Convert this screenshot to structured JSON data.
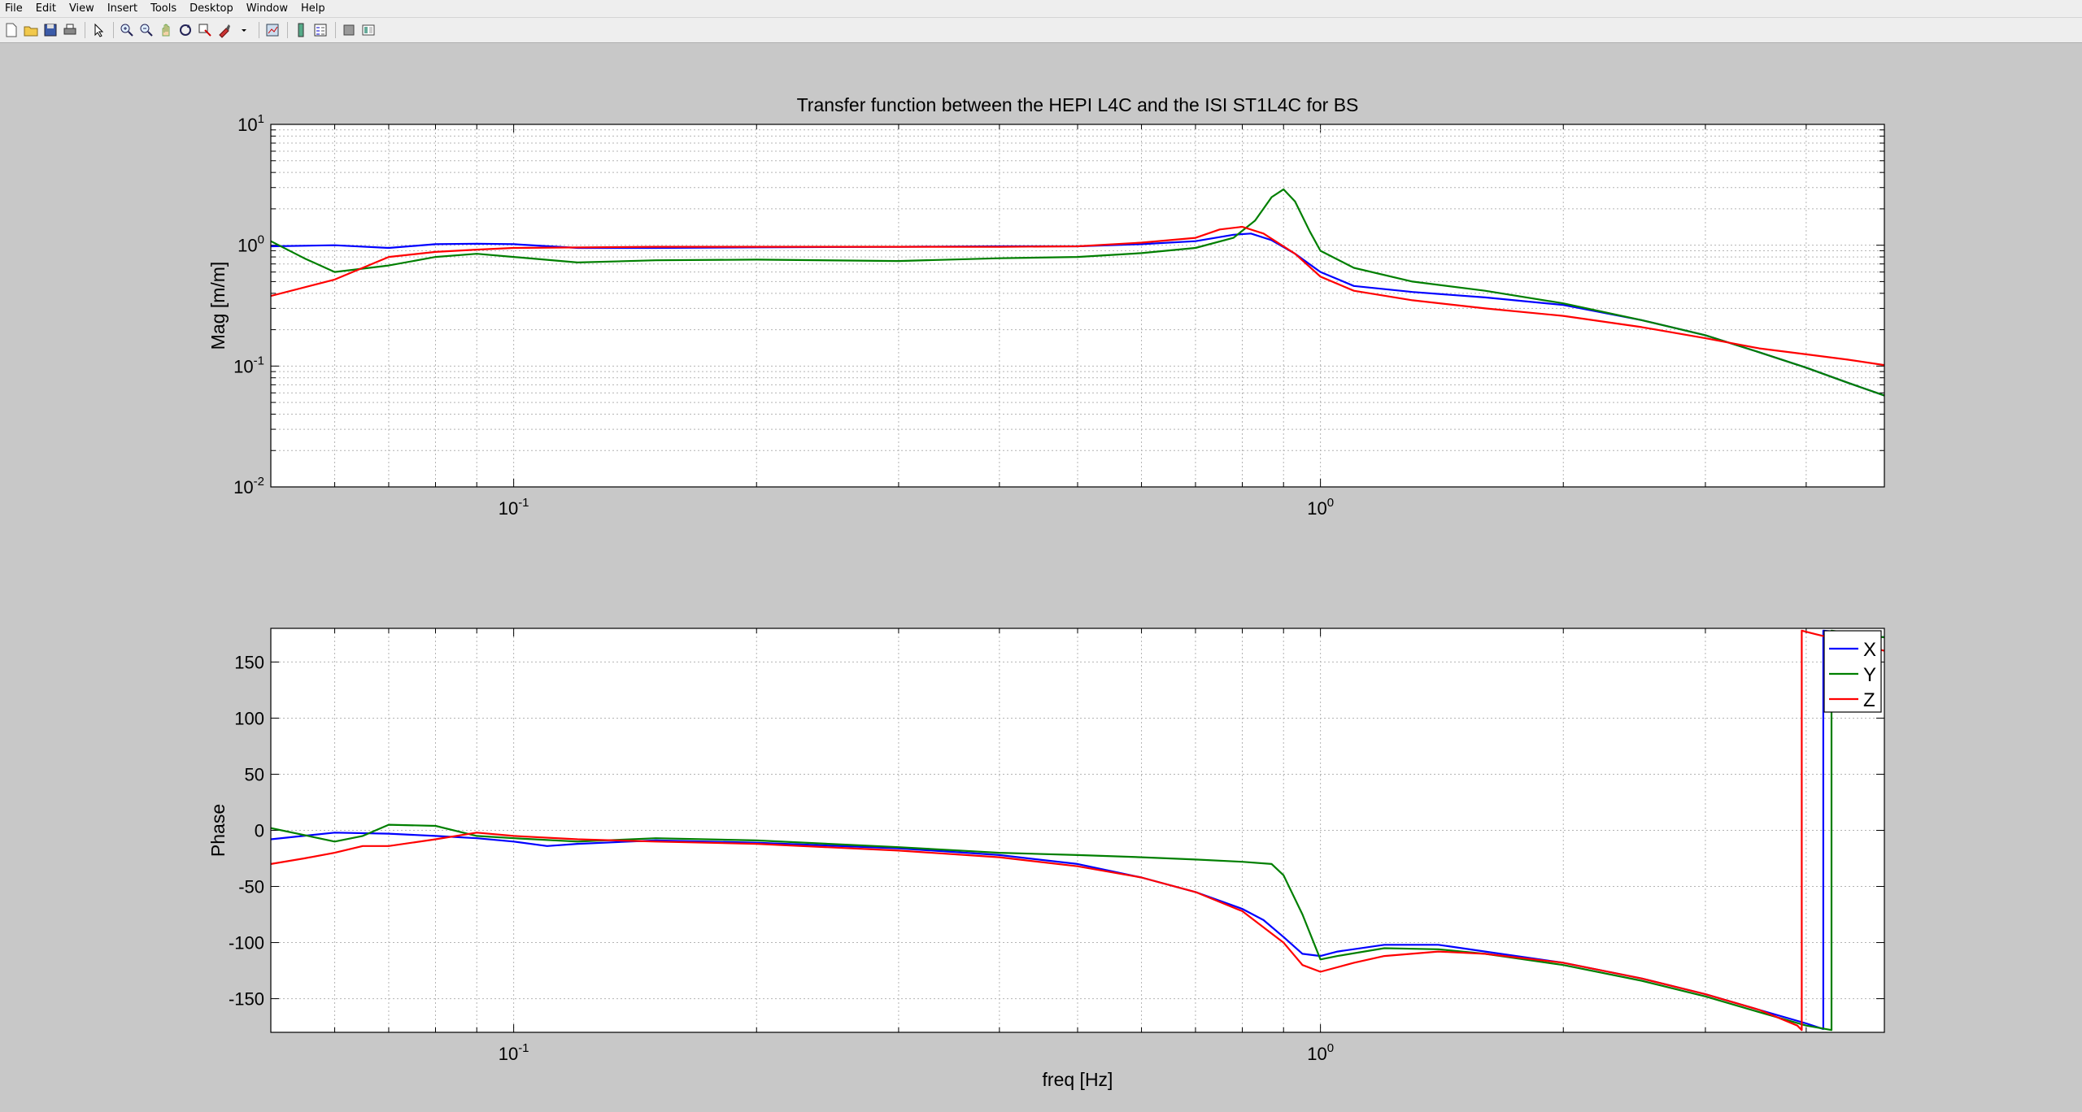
{
  "menu": [
    "File",
    "Edit",
    "View",
    "Insert",
    "Tools",
    "Desktop",
    "Window",
    "Help"
  ],
  "toolbar": [
    {
      "name": "new-figure-icon",
      "glyph": "new"
    },
    {
      "name": "open-file-icon",
      "glyph": "open"
    },
    {
      "name": "save-icon",
      "glyph": "save"
    },
    {
      "name": "print-icon",
      "glyph": "print"
    },
    {
      "sep": true
    },
    {
      "name": "edit-plot-icon",
      "glyph": "arrow"
    },
    {
      "sep": true
    },
    {
      "name": "zoom-in-icon",
      "glyph": "zoomin"
    },
    {
      "name": "zoom-out-icon",
      "glyph": "zoomout"
    },
    {
      "name": "pan-icon",
      "glyph": "pan"
    },
    {
      "name": "rotate-3d-icon",
      "glyph": "rotate"
    },
    {
      "name": "data-cursor-icon",
      "glyph": "cursor"
    },
    {
      "name": "brush-icon",
      "glyph": "brush"
    },
    {
      "name": "brush-dropdown-icon",
      "glyph": "dropdown"
    },
    {
      "sep": true
    },
    {
      "name": "link-plot-icon",
      "glyph": "link"
    },
    {
      "sep": true
    },
    {
      "name": "insert-colorbar-icon",
      "glyph": "colorbar"
    },
    {
      "name": "insert-legend-icon",
      "glyph": "legend"
    },
    {
      "sep": true
    },
    {
      "name": "hide-plot-tools-icon",
      "glyph": "hide"
    },
    {
      "name": "show-plot-tools-icon",
      "glyph": "show"
    }
  ],
  "chart_data": [
    {
      "type": "line",
      "title": "Transfer function between the HEPI L4C and the ISI ST1L4C for BS",
      "xlabel": "",
      "ylabel": "Mag [m/m]",
      "xscale": "log",
      "yscale": "log",
      "xlim": [
        0.05,
        5.0
      ],
      "ylim": [
        0.01,
        10
      ],
      "ytick_labels": [
        {
          "value": 0.01,
          "base": "10",
          "exp": "-2"
        },
        {
          "value": 0.1,
          "base": "10",
          "exp": "-1"
        },
        {
          "value": 1,
          "base": "10",
          "exp": "0"
        },
        {
          "value": 10,
          "base": "10",
          "exp": "1"
        }
      ],
      "xtick_labels": [
        {
          "value": 0.1,
          "base": "10",
          "exp": "-1"
        },
        {
          "value": 1,
          "base": "10",
          "exp": "0"
        }
      ],
      "grid": true,
      "series": [
        {
          "name": "X",
          "color": "#0000ff",
          "points": [
            [
              0.05,
              0.98
            ],
            [
              0.06,
              1.0
            ],
            [
              0.07,
              0.95
            ],
            [
              0.08,
              1.02
            ],
            [
              0.09,
              1.03
            ],
            [
              0.1,
              1.02
            ],
            [
              0.12,
              0.95
            ],
            [
              0.15,
              0.95
            ],
            [
              0.2,
              0.96
            ],
            [
              0.3,
              0.97
            ],
            [
              0.4,
              0.98
            ],
            [
              0.5,
              0.98
            ],
            [
              0.6,
              1.02
            ],
            [
              0.7,
              1.08
            ],
            [
              0.78,
              1.22
            ],
            [
              0.82,
              1.25
            ],
            [
              0.87,
              1.1
            ],
            [
              0.93,
              0.85
            ],
            [
              1.0,
              0.6
            ],
            [
              1.1,
              0.46
            ],
            [
              1.3,
              0.41
            ],
            [
              1.6,
              0.37
            ],
            [
              2.0,
              0.32
            ],
            [
              2.5,
              0.24
            ],
            [
              3.0,
              0.18
            ],
            [
              3.5,
              0.13
            ],
            [
              4.0,
              0.097
            ],
            [
              4.5,
              0.073
            ],
            [
              5.0,
              0.057
            ]
          ]
        },
        {
          "name": "Y",
          "color": "#007f00",
          "points": [
            [
              0.05,
              1.08
            ],
            [
              0.055,
              0.78
            ],
            [
              0.06,
              0.6
            ],
            [
              0.07,
              0.68
            ],
            [
              0.08,
              0.8
            ],
            [
              0.09,
              0.85
            ],
            [
              0.1,
              0.8
            ],
            [
              0.12,
              0.72
            ],
            [
              0.15,
              0.75
            ],
            [
              0.2,
              0.76
            ],
            [
              0.3,
              0.74
            ],
            [
              0.4,
              0.78
            ],
            [
              0.5,
              0.8
            ],
            [
              0.6,
              0.86
            ],
            [
              0.7,
              0.95
            ],
            [
              0.78,
              1.15
            ],
            [
              0.83,
              1.6
            ],
            [
              0.87,
              2.5
            ],
            [
              0.9,
              2.9
            ],
            [
              0.93,
              2.3
            ],
            [
              0.97,
              1.3
            ],
            [
              1.0,
              0.9
            ],
            [
              1.1,
              0.65
            ],
            [
              1.3,
              0.5
            ],
            [
              1.6,
              0.42
            ],
            [
              2.0,
              0.33
            ],
            [
              2.5,
              0.24
            ],
            [
              3.0,
              0.18
            ],
            [
              3.5,
              0.13
            ],
            [
              4.0,
              0.097
            ],
            [
              4.5,
              0.073
            ],
            [
              5.0,
              0.057
            ]
          ]
        },
        {
          "name": "Z",
          "color": "#ff0000",
          "points": [
            [
              0.05,
              0.38
            ],
            [
              0.06,
              0.52
            ],
            [
              0.07,
              0.8
            ],
            [
              0.08,
              0.88
            ],
            [
              0.09,
              0.92
            ],
            [
              0.1,
              0.95
            ],
            [
              0.15,
              0.97
            ],
            [
              0.2,
              0.97
            ],
            [
              0.3,
              0.97
            ],
            [
              0.4,
              0.97
            ],
            [
              0.5,
              0.98
            ],
            [
              0.6,
              1.05
            ],
            [
              0.7,
              1.15
            ],
            [
              0.75,
              1.35
            ],
            [
              0.8,
              1.42
            ],
            [
              0.85,
              1.25
            ],
            [
              0.93,
              0.85
            ],
            [
              1.0,
              0.55
            ],
            [
              1.1,
              0.42
            ],
            [
              1.3,
              0.35
            ],
            [
              1.6,
              0.3
            ],
            [
              2.0,
              0.26
            ],
            [
              2.5,
              0.21
            ],
            [
              3.0,
              0.17
            ],
            [
              3.5,
              0.14
            ],
            [
              4.0,
              0.125
            ],
            [
              4.5,
              0.113
            ],
            [
              5.0,
              0.102
            ]
          ]
        }
      ]
    },
    {
      "type": "line",
      "title": "",
      "xlabel": "freq [Hz]",
      "ylabel": "Phase",
      "xscale": "log",
      "yscale": "linear",
      "xlim": [
        0.05,
        5.0
      ],
      "ylim": [
        -180,
        180
      ],
      "ytick_labels": [
        {
          "value": 150,
          "text": "150"
        },
        {
          "value": 100,
          "text": "100"
        },
        {
          "value": 50,
          "text": "50"
        },
        {
          "value": 0,
          "text": "0"
        },
        {
          "value": -50,
          "text": "-50"
        },
        {
          "value": -100,
          "text": "-100"
        },
        {
          "value": -150,
          "text": "-150"
        }
      ],
      "xtick_labels": [
        {
          "value": 0.1,
          "base": "10",
          "exp": "-1"
        },
        {
          "value": 1,
          "base": "10",
          "exp": "0"
        }
      ],
      "grid": true,
      "legend": {
        "position": "top-right",
        "entries": [
          "X",
          "Y",
          "Z"
        ]
      },
      "series": [
        {
          "name": "X",
          "color": "#0000ff",
          "points": [
            [
              0.05,
              -8
            ],
            [
              0.06,
              -2
            ],
            [
              0.07,
              -3
            ],
            [
              0.08,
              -5
            ],
            [
              0.09,
              -7
            ],
            [
              0.1,
              -10
            ],
            [
              0.11,
              -14
            ],
            [
              0.12,
              -12
            ],
            [
              0.15,
              -9
            ],
            [
              0.2,
              -11
            ],
            [
              0.3,
              -16
            ],
            [
              0.4,
              -22
            ],
            [
              0.5,
              -30
            ],
            [
              0.6,
              -42
            ],
            [
              0.7,
              -55
            ],
            [
              0.8,
              -70
            ],
            [
              0.85,
              -80
            ],
            [
              0.9,
              -95
            ],
            [
              0.95,
              -110
            ],
            [
              1.0,
              -112
            ],
            [
              1.05,
              -108
            ],
            [
              1.2,
              -102
            ],
            [
              1.4,
              -102
            ],
            [
              1.6,
              -108
            ],
            [
              2.0,
              -118
            ],
            [
              2.5,
              -132
            ],
            [
              3.0,
              -146
            ],
            [
              3.5,
              -160
            ],
            [
              4.0,
              -172
            ],
            [
              4.2,
              -177
            ],
            [
              4.2,
              178
            ],
            [
              4.5,
              176
            ],
            [
              5.0,
              172
            ]
          ]
        },
        {
          "name": "Y",
          "color": "#007f00",
          "points": [
            [
              0.05,
              2
            ],
            [
              0.06,
              -10
            ],
            [
              0.065,
              -5
            ],
            [
              0.07,
              5
            ],
            [
              0.08,
              4
            ],
            [
              0.09,
              -5
            ],
            [
              0.1,
              -7
            ],
            [
              0.12,
              -10
            ],
            [
              0.15,
              -7
            ],
            [
              0.2,
              -9
            ],
            [
              0.3,
              -15
            ],
            [
              0.4,
              -20
            ],
            [
              0.5,
              -22
            ],
            [
              0.6,
              -24
            ],
            [
              0.7,
              -26
            ],
            [
              0.8,
              -28
            ],
            [
              0.87,
              -30
            ],
            [
              0.9,
              -40
            ],
            [
              0.95,
              -75
            ],
            [
              1.0,
              -115
            ],
            [
              1.05,
              -112
            ],
            [
              1.2,
              -105
            ],
            [
              1.4,
              -106
            ],
            [
              1.6,
              -110
            ],
            [
              2.0,
              -120
            ],
            [
              2.5,
              -134
            ],
            [
              3.0,
              -148
            ],
            [
              3.5,
              -162
            ],
            [
              4.0,
              -174
            ],
            [
              4.3,
              -178
            ],
            [
              4.3,
              178
            ],
            [
              4.6,
              175
            ],
            [
              5.0,
              172
            ]
          ]
        },
        {
          "name": "Z",
          "color": "#ff0000",
          "points": [
            [
              0.05,
              -30
            ],
            [
              0.055,
              -25
            ],
            [
              0.06,
              -20
            ],
            [
              0.065,
              -14
            ],
            [
              0.07,
              -14
            ],
            [
              0.08,
              -8
            ],
            [
              0.09,
              -2
            ],
            [
              0.1,
              -5
            ],
            [
              0.12,
              -8
            ],
            [
              0.15,
              -10
            ],
            [
              0.2,
              -12
            ],
            [
              0.3,
              -18
            ],
            [
              0.4,
              -24
            ],
            [
              0.5,
              -32
            ],
            [
              0.6,
              -42
            ],
            [
              0.7,
              -55
            ],
            [
              0.8,
              -72
            ],
            [
              0.9,
              -100
            ],
            [
              0.95,
              -120
            ],
            [
              1.0,
              -126
            ],
            [
              1.1,
              -118
            ],
            [
              1.2,
              -112
            ],
            [
              1.4,
              -108
            ],
            [
              1.6,
              -110
            ],
            [
              2.0,
              -118
            ],
            [
              2.5,
              -132
            ],
            [
              3.0,
              -146
            ],
            [
              3.5,
              -160
            ],
            [
              3.9,
              -174
            ],
            [
              3.95,
              -178
            ],
            [
              3.95,
              178
            ],
            [
              4.1,
              175
            ],
            [
              5.0,
              160
            ]
          ]
        }
      ]
    }
  ]
}
